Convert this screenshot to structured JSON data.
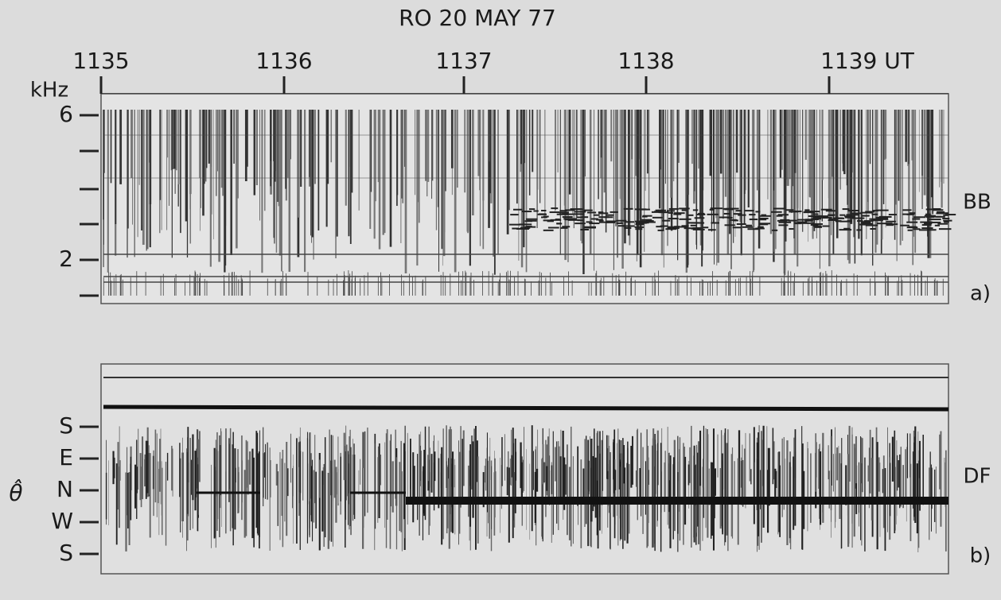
{
  "title": "RO 20 MAY 77",
  "time_axis": {
    "labels": [
      "1135",
      "1136",
      "1137",
      "1138",
      "1139 UT"
    ]
  },
  "panel_a": {
    "unit": "kHz",
    "ticks": [
      "6",
      "2"
    ],
    "label": "BB",
    "tag": "a)"
  },
  "panel_b": {
    "axis_label": "θ̂",
    "ticks": [
      "S",
      "E",
      "N",
      "W",
      "S"
    ],
    "label": "DF",
    "tag": "b)"
  }
}
